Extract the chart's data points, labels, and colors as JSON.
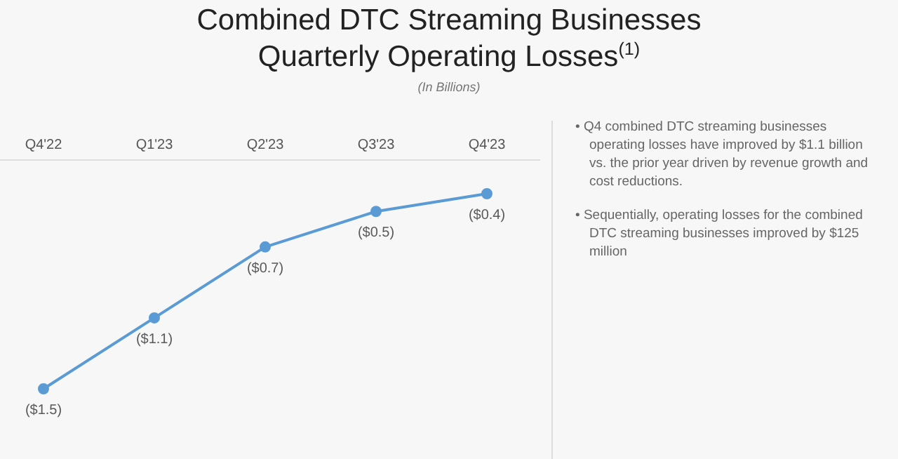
{
  "chart_data": {
    "type": "line",
    "title": "Combined DTC Streaming Businesses\nQuarterly Operating Losses$^{(1)}$",
    "subtitle": "(In Billions)",
    "categories": [
      "Q4'22",
      "Q1'23",
      "Q2'23",
      "Q3'23",
      "Q4'23"
    ],
    "series": [
      {
        "color": "#5b9bd5",
        "values": [
          -1.5,
          -1.1,
          -0.7,
          -0.5,
          -0.4
        ],
        "value_labels": [
          "($1.5)",
          "($1.1)",
          "($0.7)",
          "($0.5)",
          "($0.4)"
        ]
      }
    ],
    "marker": "circle",
    "line_style": "solid",
    "tick_labels": "x",
    "annotations": [
      "• Q4 combined DTC streaming businesses operating losses have improved by $1.1 billion vs. the prior year driven by revenue growth and cost reductions.",
      "• Sequentially, operating losses for the combined DTC streaming businesses improved by $125 million"
    ]
  }
}
